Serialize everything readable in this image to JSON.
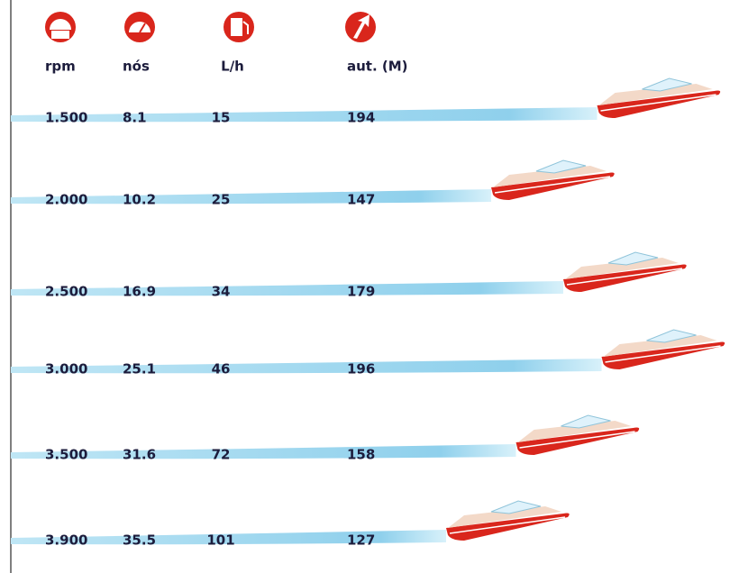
{
  "table": {
    "columns": [
      "rpm",
      "nós",
      "L/h",
      "aut. (M)"
    ],
    "rows": [
      [
        "1.500",
        "8.1",
        "15",
        194
      ],
      [
        "2.000",
        "10.2",
        "25",
        147
      ],
      [
        "2.500",
        "16.9",
        "34",
        179
      ],
      [
        "3.000",
        "25.1",
        "46",
        196
      ],
      [
        "3.500",
        "31.6",
        "72",
        158
      ],
      [
        "3.900",
        "35.5",
        "101",
        127
      ]
    ]
  }
}
